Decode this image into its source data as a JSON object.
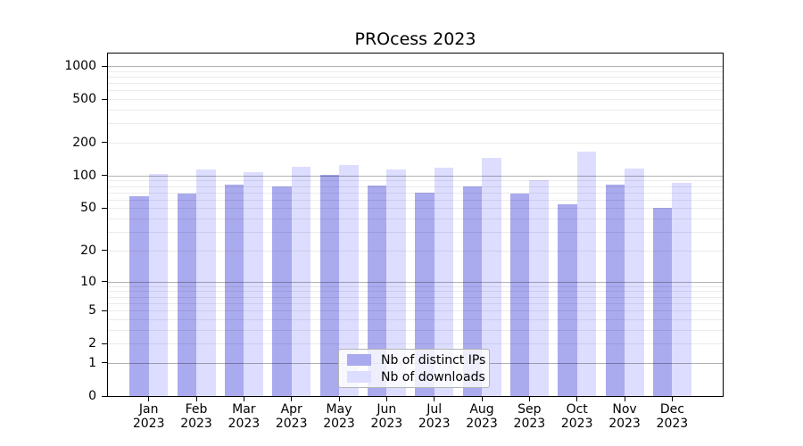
{
  "chart_data": {
    "type": "bar",
    "title": "PROcess 2023",
    "categories": [
      "Jan 2023",
      "Feb 2023",
      "Mar 2023",
      "Apr 2023",
      "May 2023",
      "Jun 2023",
      "Jul 2023",
      "Aug 2023",
      "Sep 2023",
      "Oct 2023",
      "Nov 2023",
      "Dec 2023"
    ],
    "series": [
      {
        "name": "Nb of distinct IPs",
        "color": "#aaaaee",
        "values": [
          65,
          68,
          82,
          79,
          101,
          81,
          69,
          79,
          68,
          54,
          82,
          50
        ]
      },
      {
        "name": "Nb of downloads",
        "color": "#ddddff",
        "values": [
          103,
          114,
          108,
          121,
          126,
          114,
          118,
          144,
          90,
          166,
          116,
          86
        ]
      }
    ],
    "y_axis": {
      "scale": "log1p",
      "ticks": [
        0,
        1,
        2,
        5,
        10,
        20,
        50,
        100,
        200,
        500,
        1000
      ],
      "major_gridlines": [
        1,
        10,
        100,
        1000
      ],
      "minor_gridlines": [
        2,
        3,
        4,
        5,
        6,
        7,
        8,
        9,
        20,
        30,
        40,
        50,
        60,
        70,
        80,
        90,
        200,
        300,
        400,
        500,
        600,
        700,
        800,
        900
      ],
      "ylim": [
        0,
        1320
      ]
    },
    "x_axis": {
      "tick_line2": "2023"
    },
    "grid": true,
    "legend": {
      "position": "lower-center",
      "entries": [
        "Nb of distinct IPs",
        "Nb of downloads"
      ]
    },
    "colors": {
      "spine": "#000000",
      "major_grid": "#b0b0b0",
      "minor_grid": "#e8e8e8",
      "legend_border": "#b4b4b4",
      "background": "#ffffff"
    }
  }
}
